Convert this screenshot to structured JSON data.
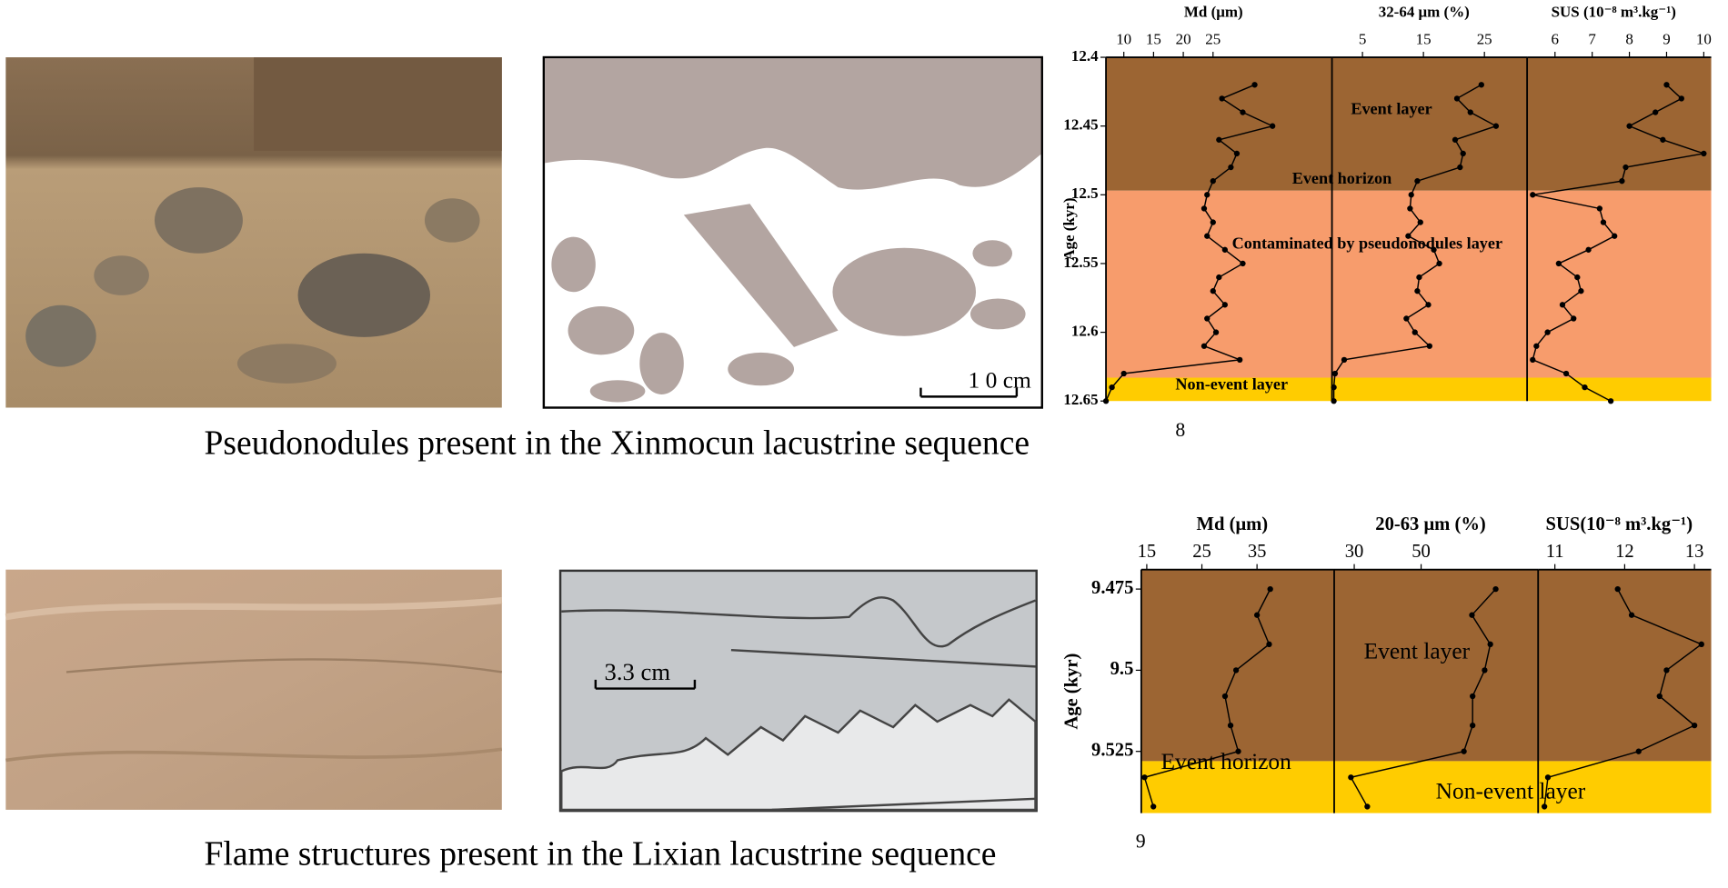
{
  "chart_data": [
    {
      "type": "profile",
      "x_label": "Md (μm)",
      "y_label": "Age (kyr)",
      "y": [
        12.42,
        12.43,
        12.44,
        12.45,
        12.46,
        12.47,
        12.48,
        12.49,
        12.5,
        12.51,
        12.52,
        12.53,
        12.54,
        12.55,
        12.56,
        12.57,
        12.58,
        12.59,
        12.6,
        12.61,
        12.62,
        12.63,
        12.64,
        12.65
      ],
      "values": [
        32,
        26.5,
        30,
        35,
        26,
        29,
        28,
        25,
        24,
        23.5,
        25,
        24,
        27,
        30,
        26,
        25,
        27,
        24,
        25.5,
        23.5,
        29.5,
        10,
        8,
        7
      ],
      "color": "#000000",
      "xlim": [
        7,
        45
      ],
      "xticks": [
        10,
        15,
        20,
        25
      ],
      "ylim": [
        12.4,
        12.65
      ],
      "yticks": [
        12.4,
        12.45,
        12.5,
        12.55,
        12.6,
        12.65
      ],
      "bands": [
        {
          "from": 12.4,
          "to": 12.497,
          "color": "#9c6533"
        },
        {
          "from": 12.497,
          "to": 12.633,
          "color": "#f79c6c"
        },
        {
          "from": 12.633,
          "to": 12.65,
          "color": "#ffcc00"
        }
      ]
    },
    {
      "type": "profile",
      "x_label": "32-64 μm (%)",
      "y": [
        12.42,
        12.43,
        12.44,
        12.45,
        12.46,
        12.47,
        12.48,
        12.49,
        12.5,
        12.51,
        12.52,
        12.53,
        12.54,
        12.55,
        12.56,
        12.57,
        12.58,
        12.59,
        12.6,
        12.61,
        12.62,
        12.63,
        12.64,
        12.65
      ],
      "values": [
        24.5,
        20.5,
        22.7,
        26.9,
        20.2,
        21.5,
        21,
        14,
        13,
        12.8,
        14.5,
        12.5,
        16.7,
        17.6,
        14.3,
        14,
        15.8,
        12.2,
        13.6,
        16,
        2,
        0.5,
        0.3,
        0.3
      ],
      "color": "#000000",
      "xlim": [
        0,
        32
      ],
      "xticks": [
        5,
        15,
        25
      ],
      "ylim": [
        12.4,
        12.65
      ],
      "bands": [
        {
          "from": 12.4,
          "to": 12.497,
          "color": "#9c6533"
        },
        {
          "from": 12.497,
          "to": 12.633,
          "color": "#f79c6c"
        },
        {
          "from": 12.633,
          "to": 12.65,
          "color": "#ffcc00"
        }
      ]
    },
    {
      "type": "profile",
      "x_label": "SUS (10⁻⁸ m³.kg⁻¹)",
      "y": [
        12.42,
        12.43,
        12.44,
        12.45,
        12.46,
        12.47,
        12.48,
        12.49,
        12.5,
        12.51,
        12.52,
        12.53,
        12.54,
        12.55,
        12.56,
        12.57,
        12.58,
        12.59,
        12.6,
        12.61,
        12.62,
        12.63,
        12.64,
        12.65
      ],
      "values": [
        9.0,
        9.4,
        8.7,
        8.0,
        8.9,
        10.0,
        7.9,
        7.8,
        5.4,
        7.2,
        7.3,
        7.6,
        6.9,
        6.1,
        6.6,
        6.7,
        6.2,
        6.5,
        5.8,
        5.5,
        5.4,
        6.3,
        6.8,
        7.5
      ],
      "color": "#000000",
      "xlim": [
        5.25,
        10.2
      ],
      "xticks": [
        6,
        7,
        8,
        9,
        10
      ],
      "ylim": [
        12.4,
        12.65
      ],
      "bands": [
        {
          "from": 12.4,
          "to": 12.497,
          "color": "#9c6533"
        },
        {
          "from": 12.497,
          "to": 12.633,
          "color": "#f79c6c"
        },
        {
          "from": 12.633,
          "to": 12.65,
          "color": "#ffcc00"
        }
      ]
    },
    {
      "type": "profile",
      "x_label": "Md (μm)",
      "y_label": "Age (kyr)",
      "y": [
        9.475,
        9.483,
        9.492,
        9.5,
        9.508,
        9.517,
        9.525,
        9.533,
        9.542
      ],
      "values": [
        37.4,
        35,
        37.2,
        31.2,
        29.2,
        30.2,
        31.6,
        14.6,
        16.2
      ],
      "color": "#000000",
      "xlim": [
        14,
        49
      ],
      "xticks": [
        15,
        25,
        35
      ],
      "ylim": [
        9.469,
        9.544
      ],
      "yticks": [
        9.475,
        9.5,
        9.525
      ],
      "bands": [
        {
          "from": 9.469,
          "to": 9.528,
          "color": "#9c6533"
        },
        {
          "from": 9.528,
          "to": 9.544,
          "color": "#ffcc00"
        }
      ]
    },
    {
      "type": "profile",
      "x_label": "20-63 μm (%)",
      "y": [
        9.475,
        9.483,
        9.492,
        9.5,
        9.508,
        9.517,
        9.525,
        9.533,
        9.542
      ],
      "values": [
        72.3,
        65.2,
        70.7,
        69,
        65.4,
        65.4,
        62.8,
        29,
        33.9
      ],
      "color": "#000000",
      "xlim": [
        24,
        85
      ],
      "xticks": [
        30,
        50
      ],
      "ylim": [
        9.469,
        9.544
      ],
      "bands": [
        {
          "from": 9.469,
          "to": 9.528,
          "color": "#9c6533"
        },
        {
          "from": 9.528,
          "to": 9.544,
          "color": "#ffcc00"
        }
      ]
    },
    {
      "type": "profile",
      "x_label": "SUS(10⁻⁸ m³.kg⁻¹)",
      "y": [
        9.475,
        9.483,
        9.492,
        9.5,
        9.508,
        9.517,
        9.525,
        9.533,
        9.542
      ],
      "values": [
        11.9,
        12.1,
        13.1,
        12.6,
        12.5,
        13,
        12.2,
        10.9,
        10.85
      ],
      "color": "#000000",
      "xlim": [
        10.76,
        13.24
      ],
      "xticks": [
        11,
        12,
        13
      ],
      "ylim": [
        9.469,
        9.544
      ],
      "bands": [
        {
          "from": 9.469,
          "to": 9.528,
          "color": "#9c6533"
        },
        {
          "from": 9.528,
          "to": 9.544,
          "color": "#ffcc00"
        }
      ]
    }
  ],
  "rows": [
    {
      "caption": "Pseudonodules present in the Xinmocun lacustrine sequence",
      "caption_note": "8",
      "scale_bar": "1 0 cm",
      "annotations": [
        "Event layer",
        "Event horizon",
        "Contaminated by pseudonodules layer",
        "Non-event layer"
      ]
    },
    {
      "caption": "Flame structures present in the Lixian lacustrine sequence",
      "caption_note": "9",
      "scale_bar": "3.3 cm",
      "annotations": [
        "Event layer",
        "Event horizon",
        "Non-event layer"
      ]
    }
  ]
}
